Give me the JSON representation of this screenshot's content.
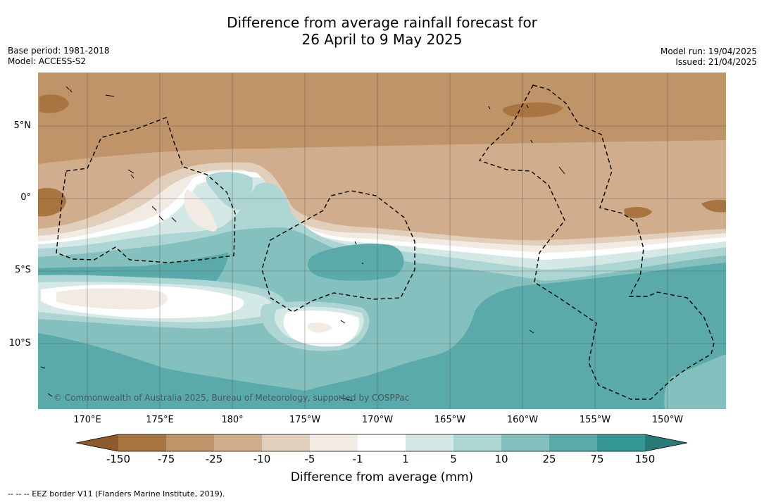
{
  "header": {
    "title_line1": "Difference from average rainfall forecast for",
    "title_line2": "26 April to 9 May 2025",
    "base_period": "Base period: 1981-2018",
    "model": "Model: ACCESS-S2",
    "model_run": "Model run: 19/04/2025",
    "issued": "Issued: 21/04/2025"
  },
  "map": {
    "lat_labels": [
      "5°N",
      "0°",
      "5°S",
      "10°S"
    ],
    "lon_labels": [
      "170°E",
      "175°E",
      "180°",
      "175°W",
      "170°W",
      "165°W",
      "160°W",
      "155°W",
      "150°W"
    ],
    "copyright": "© Commonwealth of Australia 2025, Bureau of Meteorology, supported by COSPPac",
    "colors": {
      "very_dry": "#a8743f",
      "dry": "#bf9468",
      "moderately_dry": "#d0ad8c",
      "slightly_dry": "#e2cfbb",
      "near_dry": "#f1ebe4",
      "neutral": "#ffffff",
      "near_wet": "#d4e8e6",
      "slightly_wet": "#acd5d3",
      "moderately_wet": "#84c0be",
      "wet": "#5aaaaa",
      "very_wet": "#359896",
      "extreme_wet": "#2a7a78"
    }
  },
  "colorbar": {
    "ticks": [
      "-150",
      "-75",
      "-25",
      "-10",
      "-5",
      "-1",
      "1",
      "5",
      "10",
      "25",
      "75",
      "150"
    ],
    "title": "Difference from average (mm)"
  },
  "footnote": "--  --  -- EEZ border V11 (Flanders Marine Institute, 2019)."
}
